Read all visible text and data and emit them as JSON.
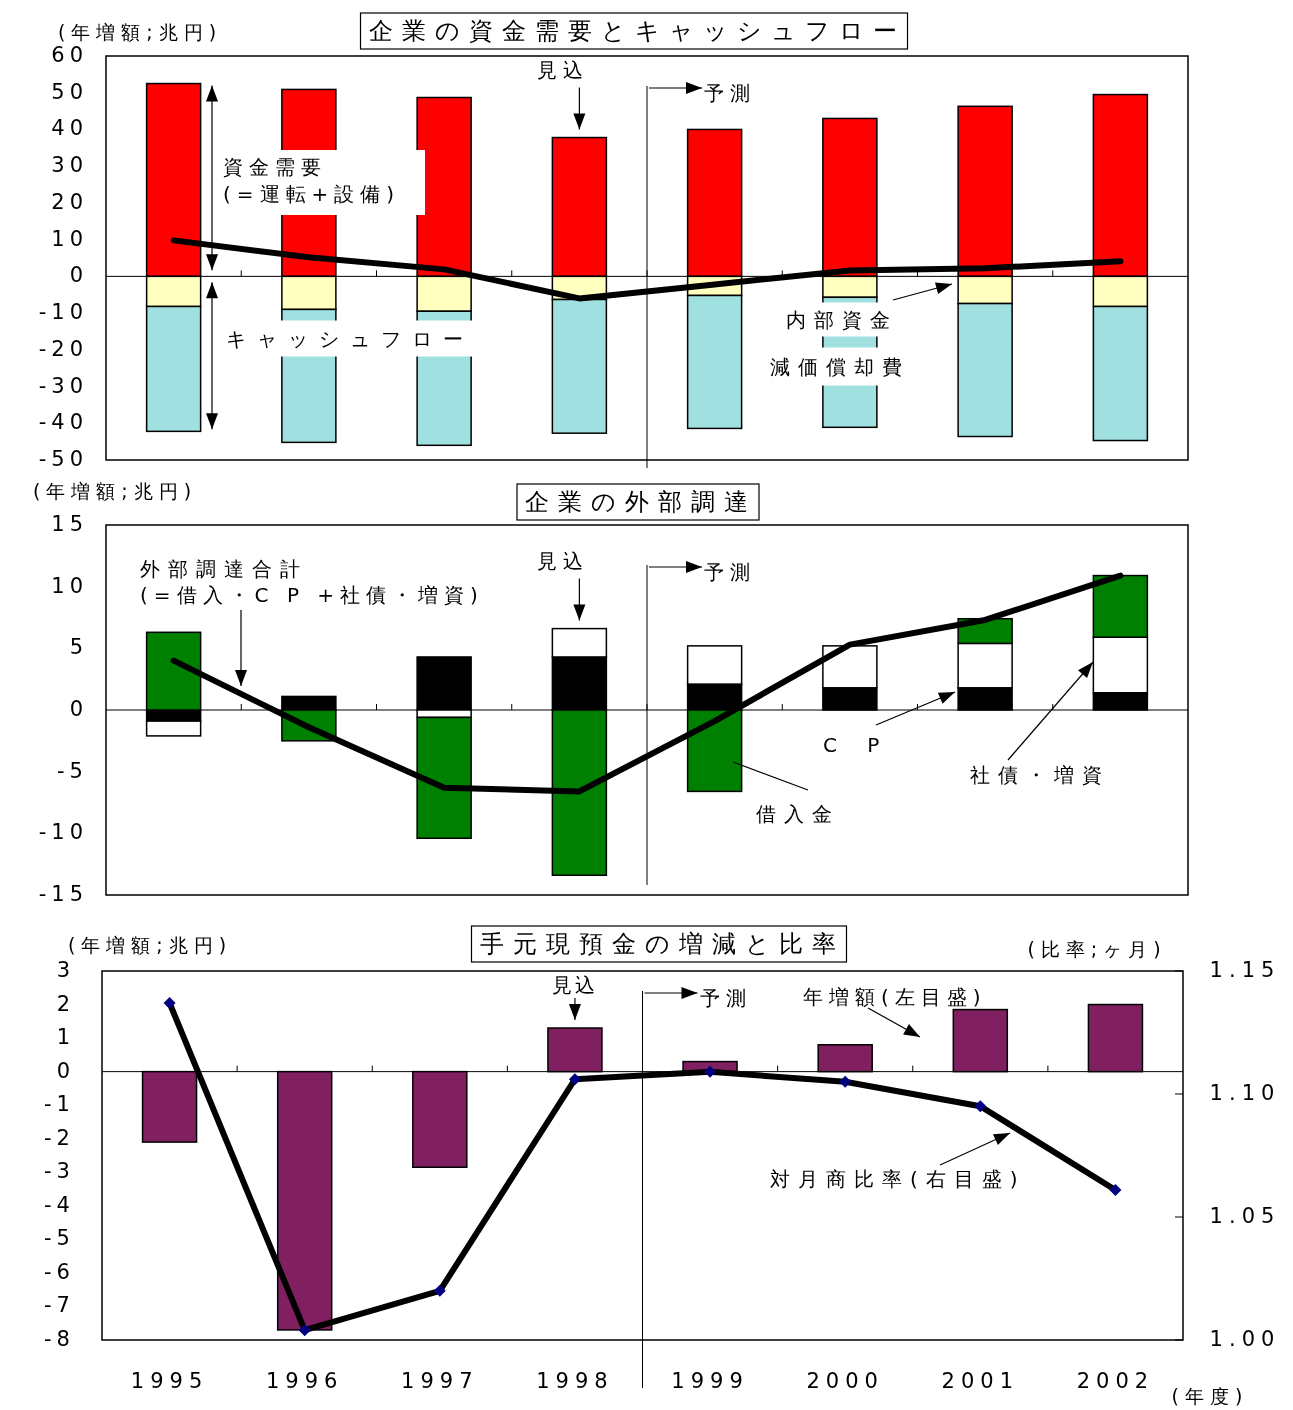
{
  "chart_data": [
    {
      "type": "bar",
      "stacked": true,
      "title": "企業の資金需要とキャッシュフロー",
      "ylabel": "(年増額;兆円)",
      "categories": [
        null,
        null,
        null,
        null,
        null,
        null,
        null,
        null
      ],
      "tick_labels": "y",
      "ylim": [
        -50,
        60
      ],
      "yticks": [
        60,
        50,
        40,
        30,
        20,
        10,
        0,
        -10,
        -20,
        -30,
        -40,
        -50
      ],
      "series": [
        {
          "name": "資金需要",
          "color": "#ff0000",
          "values": [
            52.5,
            50.9,
            48.7,
            37.8,
            40.0,
            43.0,
            46.3,
            49.5
          ]
        },
        {
          "name": "内部資金",
          "color": "#ffffc0",
          "values": [
            -8.2,
            -9.0,
            -9.5,
            -6.3,
            -5.2,
            -5.7,
            -7.4,
            -8.2
          ]
        },
        {
          "name": "減価償却費",
          "color": "#a0e0e0",
          "values": [
            -34.0,
            -36.2,
            -36.5,
            -36.4,
            -36.2,
            -35.4,
            -36.2,
            -36.5
          ]
        },
        {
          "type": "line",
          "color": "#000000",
          "values": [
            9.8,
            5.2,
            1.9,
            -6.0,
            -2.2,
            1.6,
            2.2,
            4.1
          ]
        }
      ],
      "annotations": [
        "見込",
        "予測",
        "(=運転+設備)",
        "キャッシュフロー"
      ]
    },
    {
      "type": "bar",
      "stacked": true,
      "title": "企業の外部調達",
      "ylabel": "(年増額;兆円)",
      "categories": [
        null,
        null,
        null,
        null,
        null,
        null,
        null,
        null
      ],
      "tick_labels": "y",
      "ylim": [
        -15,
        15
      ],
      "yticks": [
        15,
        10,
        5,
        0,
        -5,
        -10,
        -15
      ],
      "series": [
        {
          "name": "C P",
          "color": "#000000",
          "values": [
            -0.9,
            1.1,
            4.3,
            4.3,
            2.1,
            1.8,
            1.8,
            1.4
          ]
        },
        {
          "name": "社債・増資",
          "color": "#ffffff",
          "values": [
            -1.2,
            0,
            -0.6,
            2.3,
            3.1,
            3.4,
            3.6,
            4.5
          ]
        },
        {
          "name": "借入金",
          "color": "#008000",
          "values": [
            6.3,
            -2.5,
            -9.8,
            -13.4,
            -6.6,
            0,
            2.0,
            5.0
          ]
        },
        {
          "type": "line",
          "color": "#000000",
          "values": [
            4.0,
            -1.4,
            -6.3,
            -6.6,
            -0.9,
            5.3,
            7.3,
            10.9
          ]
        }
      ],
      "annotations": [
        "見込",
        "予測",
        "外部調達合計",
        "(=借入・C P +社債・増資)"
      ]
    },
    {
      "type": "bar",
      "title": "手元現預金の増減と比率",
      "ylabel": "(年増額;兆円)",
      "y2label": "(比率;ヶ月)",
      "xlabel": "(年度)",
      "categories": [
        "1995",
        "1996",
        "1997",
        "1998",
        "1999",
        "2000",
        "2001",
        "2002"
      ],
      "marker": "diamond",
      "ylim": [
        -8,
        3
      ],
      "yticks": [
        3,
        2,
        1,
        0,
        -1,
        -2,
        -3,
        -4,
        -5,
        -6,
        -7,
        -8
      ],
      "y2lim": [
        1.0,
        1.15
      ],
      "y2ticks": [
        {
          "value": 1.15,
          "label": "1.15"
        },
        {
          "value": 1.1,
          "label": "1.10"
        },
        {
          "value": 1.05,
          "label": "1.05"
        },
        {
          "value": 1.0,
          "label": "1.00"
        }
      ],
      "series": [
        {
          "name": "年増額(左目盛)",
          "color": "#802060",
          "values": [
            -2.1,
            -7.7,
            -2.85,
            1.3,
            0.3,
            0.8,
            1.85,
            2.0
          ]
        },
        {
          "type": "line",
          "name": "対月商比率(右目盛)",
          "axis": "y2",
          "color": "#000000",
          "values": [
            1.137,
            1.004,
            1.02,
            1.106,
            1.109,
            1.105,
            1.095,
            1.061
          ]
        }
      ],
      "annotations": [
        {
          "text": "見込",
          "x": "1998",
          "y": 1.3
        },
        "予測"
      ]
    }
  ]
}
